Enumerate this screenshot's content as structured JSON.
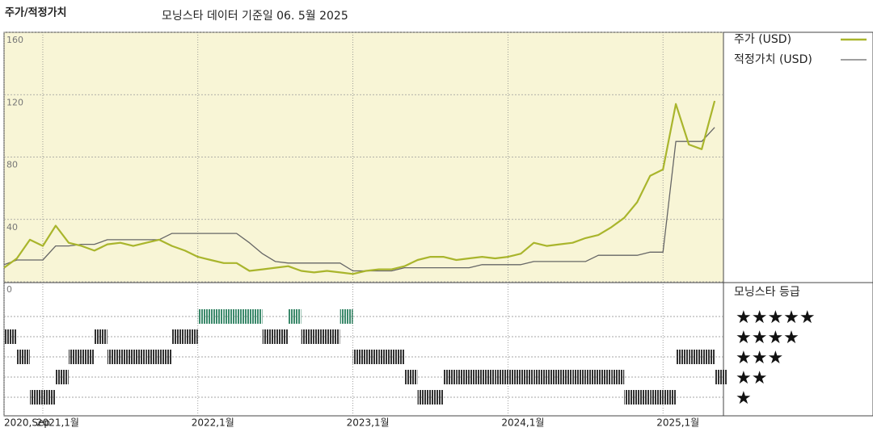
{
  "chart_data": {
    "type": "line",
    "title": "주가/적정가치",
    "subtitle": "모닝스타 데이터 기준일 06. 5월 2025",
    "x": [
      2020.75,
      2020.833,
      2020.917,
      2021,
      2021.083,
      2021.167,
      2021.25,
      2021.333,
      2021.417,
      2021.5,
      2021.583,
      2021.667,
      2021.75,
      2021.833,
      2021.917,
      2022,
      2022.083,
      2022.167,
      2022.25,
      2022.333,
      2022.417,
      2022.5,
      2022.583,
      2022.667,
      2022.75,
      2022.833,
      2022.917,
      2023,
      2023.083,
      2023.167,
      2023.25,
      2023.333,
      2023.417,
      2023.5,
      2023.583,
      2023.667,
      2023.75,
      2023.833,
      2023.917,
      2024,
      2024.083,
      2024.167,
      2024.25,
      2024.333,
      2024.417,
      2024.5,
      2024.583,
      2024.667,
      2024.75,
      2024.833,
      2024.917,
      2025,
      2025.083,
      2025.167,
      2025.25,
      2025.333
    ],
    "xlim": [
      2020.75,
      2025.39
    ],
    "xticks": [
      {
        "value": 2020.75,
        "label": "2020,Sep"
      },
      {
        "value": 2021,
        "label": "2021,1월"
      },
      {
        "value": 2022,
        "label": "2022,1월"
      },
      {
        "value": 2023,
        "label": "2023,1월"
      },
      {
        "value": 2024,
        "label": "2024,1월"
      },
      {
        "value": 2025,
        "label": "2025,1월"
      }
    ],
    "ylim": [
      0,
      160
    ],
    "yticks": [
      0,
      40,
      80,
      120,
      160
    ],
    "series": [
      {
        "name": "주가 (USD)",
        "color": "#a9b52c",
        "values": [
          9,
          15,
          27,
          23,
          36,
          25,
          23,
          20,
          24,
          25,
          23,
          25,
          27,
          23,
          20,
          16,
          14,
          12,
          12,
          7,
          8,
          9,
          10,
          7,
          6,
          7,
          6,
          5,
          7,
          8,
          8,
          10,
          14,
          16,
          16,
          14,
          15,
          16,
          15,
          16,
          18,
          25,
          23,
          24,
          25,
          28,
          30,
          35,
          41,
          51,
          68,
          72,
          114,
          88,
          85,
          116
        ]
      },
      {
        "name": "적정가치 (USD)",
        "color": "#666666",
        "values": [
          11,
          14,
          14,
          14,
          23,
          23,
          24,
          24,
          27,
          27,
          27,
          27,
          27,
          31,
          31,
          31,
          31,
          31,
          31,
          25,
          18,
          13,
          12,
          12,
          12,
          12,
          12,
          7,
          7,
          7,
          7,
          9,
          9,
          9,
          9,
          9,
          9,
          11,
          11,
          11,
          11,
          13,
          13,
          13,
          13,
          13,
          17,
          17,
          17,
          17,
          19,
          19,
          90,
          90,
          90,
          99
        ]
      }
    ],
    "ratings_title": "모닝스타 등급",
    "rating_labels": [
      "★★★★★",
      "★★★★",
      "★★★",
      "★★",
      "★"
    ],
    "ratings": [
      4,
      3,
      1,
      1,
      2,
      3,
      3,
      4,
      3,
      3,
      3,
      3,
      3,
      4,
      4,
      5,
      5,
      5,
      5,
      5,
      4,
      4,
      5,
      4,
      4,
      4,
      5,
      3,
      3,
      3,
      3,
      2,
      1,
      1,
      2,
      2,
      2,
      2,
      2,
      2,
      2,
      2,
      2,
      2,
      2,
      2,
      2,
      2,
      1,
      1,
      1,
      1,
      3,
      3,
      3,
      2
    ]
  }
}
